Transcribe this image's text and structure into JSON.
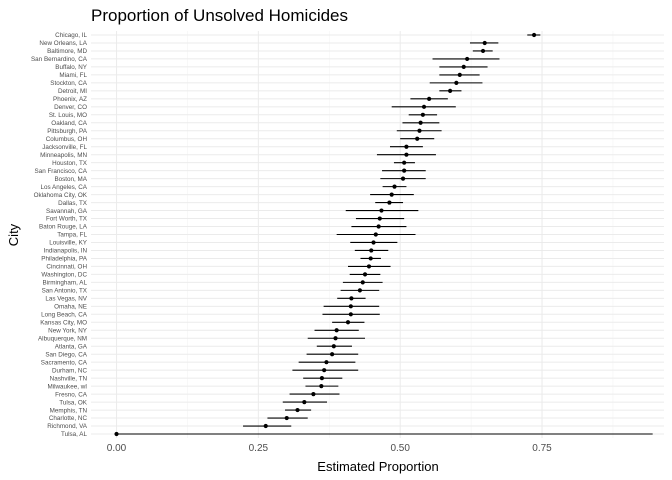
{
  "chart_data": {
    "type": "scatter",
    "title": "Proportion of Unsolved Homicides",
    "xlabel": "Estimated Proportion",
    "ylabel": "City",
    "xlim": [
      -0.045,
      0.965
    ],
    "xticks": [
      0.0,
      0.25,
      0.5,
      0.75
    ],
    "xtick_labels": [
      "0.00",
      "0.25",
      "0.50",
      "0.75"
    ],
    "grid": true,
    "legend": "none",
    "point_color": "#000000",
    "points": [
      {
        "city": "Chicago, IL",
        "estimate": 0.736,
        "low": 0.724,
        "high": 0.747
      },
      {
        "city": "New Orleans, LA",
        "estimate": 0.649,
        "low": 0.623,
        "high": 0.673
      },
      {
        "city": "Baltimore, MD",
        "estimate": 0.646,
        "low": 0.628,
        "high": 0.663
      },
      {
        "city": "San Bernardino, CA",
        "estimate": 0.618,
        "low": 0.557,
        "high": 0.675
      },
      {
        "city": "Buffalo, NY",
        "estimate": 0.612,
        "low": 0.569,
        "high": 0.654
      },
      {
        "city": "Miami, FL",
        "estimate": 0.605,
        "low": 0.569,
        "high": 0.64
      },
      {
        "city": "Stockton, CA",
        "estimate": 0.599,
        "low": 0.552,
        "high": 0.645
      },
      {
        "city": "Detroit, MI",
        "estimate": 0.588,
        "low": 0.569,
        "high": 0.608
      },
      {
        "city": "Phoenix, AZ",
        "estimate": 0.551,
        "low": 0.518,
        "high": 0.584
      },
      {
        "city": "Denver, CO",
        "estimate": 0.542,
        "low": 0.485,
        "high": 0.598
      },
      {
        "city": "St. Louis, MO",
        "estimate": 0.54,
        "low": 0.515,
        "high": 0.565
      },
      {
        "city": "Oakland, CA",
        "estimate": 0.536,
        "low": 0.504,
        "high": 0.569
      },
      {
        "city": "Pittsburgh, PA",
        "estimate": 0.534,
        "low": 0.494,
        "high": 0.573
      },
      {
        "city": "Columbus, OH",
        "estimate": 0.53,
        "low": 0.5,
        "high": 0.56
      },
      {
        "city": "Jacksonville, FL",
        "estimate": 0.511,
        "low": 0.482,
        "high": 0.54
      },
      {
        "city": "Minneapolis, MN",
        "estimate": 0.511,
        "low": 0.459,
        "high": 0.563
      },
      {
        "city": "Houston, TX",
        "estimate": 0.507,
        "low": 0.489,
        "high": 0.526
      },
      {
        "city": "San Francisco, CA",
        "estimate": 0.507,
        "low": 0.468,
        "high": 0.545
      },
      {
        "city": "Boston, MA",
        "estimate": 0.505,
        "low": 0.465,
        "high": 0.545
      },
      {
        "city": "Los Angeles, CA",
        "estimate": 0.49,
        "low": 0.469,
        "high": 0.511
      },
      {
        "city": "Oklahoma City, OK",
        "estimate": 0.485,
        "low": 0.447,
        "high": 0.524
      },
      {
        "city": "Dallas, TX",
        "estimate": 0.481,
        "low": 0.456,
        "high": 0.505
      },
      {
        "city": "Savannah, GA",
        "estimate": 0.467,
        "low": 0.404,
        "high": 0.532
      },
      {
        "city": "Fort Worth, TX",
        "estimate": 0.464,
        "low": 0.422,
        "high": 0.507
      },
      {
        "city": "Baton Rouge, LA",
        "estimate": 0.462,
        "low": 0.414,
        "high": 0.511
      },
      {
        "city": "Tampa, FL",
        "estimate": 0.457,
        "low": 0.388,
        "high": 0.527
      },
      {
        "city": "Louisville, KY",
        "estimate": 0.453,
        "low": 0.412,
        "high": 0.495
      },
      {
        "city": "Indianapolis, IN",
        "estimate": 0.449,
        "low": 0.42,
        "high": 0.479
      },
      {
        "city": "Philadelphia, PA",
        "estimate": 0.448,
        "low": 0.43,
        "high": 0.466
      },
      {
        "city": "Cincinnati, OH",
        "estimate": 0.445,
        "low": 0.408,
        "high": 0.483
      },
      {
        "city": "Washington, DC",
        "estimate": 0.438,
        "low": 0.411,
        "high": 0.465
      },
      {
        "city": "Birmingham, AL",
        "estimate": 0.434,
        "low": 0.399,
        "high": 0.469
      },
      {
        "city": "San Antonio, TX",
        "estimate": 0.429,
        "low": 0.395,
        "high": 0.463
      },
      {
        "city": "Las Vegas, NV",
        "estimate": 0.414,
        "low": 0.389,
        "high": 0.439
      },
      {
        "city": "Omaha, NE",
        "estimate": 0.413,
        "low": 0.365,
        "high": 0.463
      },
      {
        "city": "Long Beach, CA",
        "estimate": 0.413,
        "low": 0.363,
        "high": 0.464
      },
      {
        "city": "Kansas City, MO",
        "estimate": 0.408,
        "low": 0.38,
        "high": 0.437
      },
      {
        "city": "New York, NY",
        "estimate": 0.388,
        "low": 0.349,
        "high": 0.427
      },
      {
        "city": "Albuquerque, NM",
        "estimate": 0.386,
        "low": 0.337,
        "high": 0.438
      },
      {
        "city": "Atlanta, GA",
        "estimate": 0.383,
        "low": 0.353,
        "high": 0.415
      },
      {
        "city": "San Diego, CA",
        "estimate": 0.38,
        "low": 0.335,
        "high": 0.426
      },
      {
        "city": "Sacramento, CA",
        "estimate": 0.37,
        "low": 0.321,
        "high": 0.421
      },
      {
        "city": "Durham, NC",
        "estimate": 0.366,
        "low": 0.31,
        "high": 0.426
      },
      {
        "city": "Nashville, TN",
        "estimate": 0.362,
        "low": 0.329,
        "high": 0.398
      },
      {
        "city": "Milwaukee, wI",
        "estimate": 0.361,
        "low": 0.333,
        "high": 0.391
      },
      {
        "city": "Fresno, CA",
        "estimate": 0.347,
        "low": 0.305,
        "high": 0.393
      },
      {
        "city": "Tulsa, OK",
        "estimate": 0.331,
        "low": 0.293,
        "high": 0.371
      },
      {
        "city": "Memphis, TN",
        "estimate": 0.319,
        "low": 0.297,
        "high": 0.343
      },
      {
        "city": "Charlotte, NC",
        "estimate": 0.3,
        "low": 0.266,
        "high": 0.337
      },
      {
        "city": "Richmond, VA",
        "estimate": 0.263,
        "low": 0.223,
        "high": 0.308
      },
      {
        "city": "Tulsa, AL",
        "estimate": 0.0,
        "low": 0.0,
        "high": 0.945
      }
    ]
  }
}
